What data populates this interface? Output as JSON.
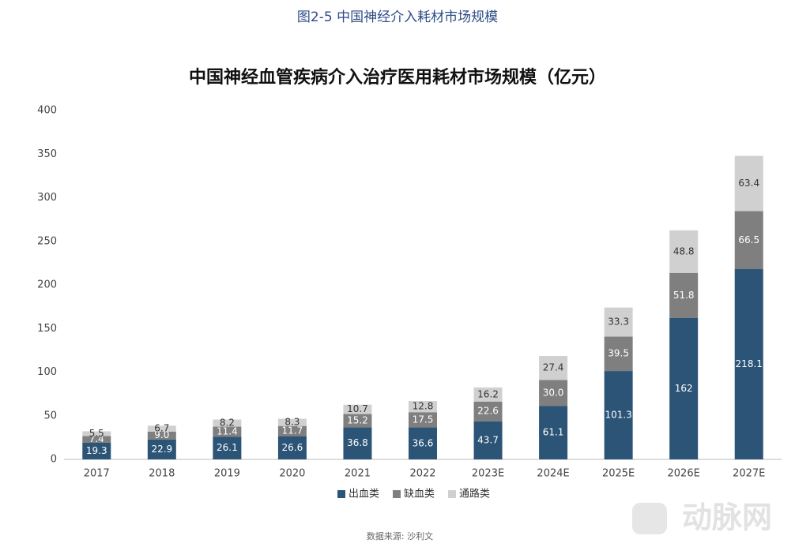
{
  "figure_caption": "图2-5 中国神经介入耗材市场规模",
  "source": "数据来源: 沙利文",
  "watermark": "动脉网",
  "chart_data": {
    "type": "stacked_bar",
    "title": "中国神经血管疾病介入治疗医用耗材市场规模（亿元）",
    "categories": [
      "2017",
      "2018",
      "2019",
      "2020",
      "2021",
      "2022",
      "2023E",
      "2024E",
      "2025E",
      "2026E",
      "2027E"
    ],
    "series": [
      {
        "name": "出血类",
        "color": "#2b5476",
        "values": [
          19.3,
          22.9,
          26.1,
          26.6,
          36.8,
          36.6,
          43.7,
          61.1,
          101.3,
          162,
          218.1
        ],
        "value_labels": [
          "19.3",
          "22.9",
          "26.1",
          "26.6",
          "36.8",
          "36.6",
          "43.7",
          "61.1",
          "101.3",
          "162",
          "218.1"
        ]
      },
      {
        "name": "缺血类",
        "color": "#7f7f7f",
        "values": [
          7.4,
          9.0,
          11.4,
          11.7,
          15.2,
          17.5,
          22.6,
          30.0,
          39.5,
          51.8,
          66.5
        ],
        "value_labels": [
          "7.4",
          "9.0",
          "11.4",
          "11.7",
          "15.2",
          "17.5",
          "22.6",
          "30.0",
          "39.5",
          "51.8",
          "66.5"
        ]
      },
      {
        "name": "通路类",
        "color": "#d0d0d0",
        "values": [
          5.5,
          6.7,
          8.2,
          8.3,
          10.7,
          12.8,
          16.2,
          27.4,
          33.3,
          48.8,
          63.4
        ],
        "value_labels": [
          "5.5",
          "6.7",
          "8.2",
          "8.3",
          "10.7",
          "12.8",
          "16.2",
          "27.4",
          "33.3",
          "48.8",
          "63.4"
        ]
      }
    ],
    "ylim": [
      0,
      400
    ],
    "yticks": [
      0,
      50,
      100,
      150,
      200,
      250,
      300,
      350,
      400
    ],
    "grid": false,
    "legend": "bottom"
  }
}
